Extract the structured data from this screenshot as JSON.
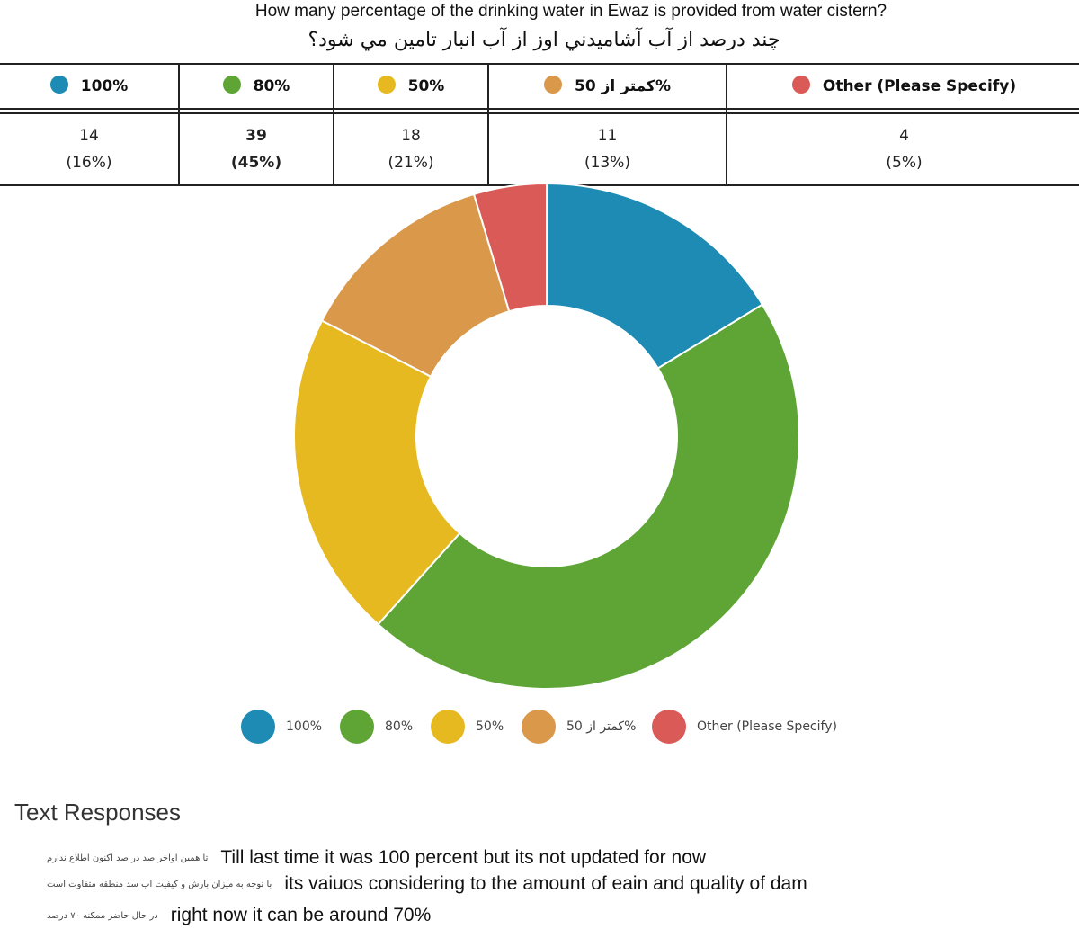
{
  "question": {
    "en": "How many percentage of the drinking water in Ewaz is provided from water cistern?",
    "fa": "چند درصد از آب آشاميدني اوز از آب انبار تامين مي شود؟"
  },
  "colors": {
    "blue": "#1d8bb3",
    "green": "#5ea536",
    "yellow": "#e6b920",
    "orange": "#d9984a",
    "red": "#d95a56"
  },
  "table": {
    "options": [
      {
        "label": "100%",
        "count": "14",
        "percent": "(16%)",
        "color": "#1d8bb3"
      },
      {
        "label": "80%",
        "count": "39",
        "percent": "(45%)",
        "color": "#5ea536"
      },
      {
        "label": "50%",
        "count": "18",
        "percent": "(21%)",
        "color": "#e6b920"
      },
      {
        "label": "50 کمتر از%",
        "count": "11",
        "percent": "(13%)",
        "color": "#d9984a"
      },
      {
        "label": "Other (Please Specify)",
        "count": "4",
        "percent": "(5%)",
        "color": "#d95a56"
      }
    ]
  },
  "chart_data": {
    "type": "pie",
    "donut": true,
    "categories": [
      "100%",
      "80%",
      "50%",
      "50 کمتر از%",
      "Other (Please Specify)"
    ],
    "values": [
      14,
      39,
      18,
      11,
      4
    ],
    "percentages": [
      16,
      45,
      21,
      13,
      5
    ],
    "colors": [
      "#1d8bb3",
      "#5ea536",
      "#e6b920",
      "#d9984a",
      "#d95a56"
    ],
    "legend": "bottom",
    "legend_entries": [
      "100%",
      "80%",
      "50%",
      "50 کمتر از%",
      "Other (Please Specify)"
    ]
  },
  "text_responses": {
    "title": "Text Responses",
    "items": [
      {
        "fa": "تا همین اواخر صد در صد اکنون اطلاع ندارم",
        "en": "Till last time it was 100 percent but its not updated for now"
      },
      {
        "fa": "با توجه به میزان بارش و کیفیت اب سد منطقه متفاوت است",
        "en": "its vaiuos considering to the amount of eain and quality of dam"
      },
      {
        "fa": "در حال حاضر ممکنه ۷۰ درصد",
        "en": "right now it can be around 70%"
      }
    ]
  }
}
